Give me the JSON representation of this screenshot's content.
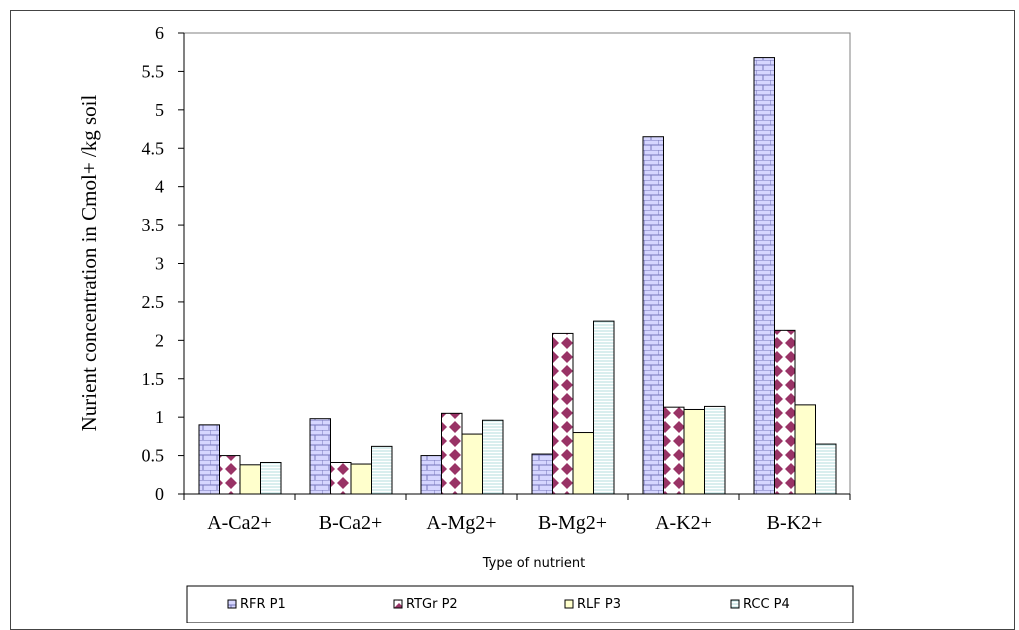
{
  "chart_data": {
    "type": "bar",
    "title": "",
    "xlabel": "Type of nutrient",
    "ylabel": "Nurient concentration in Cmol+ /kg soil",
    "ylim": [
      0,
      6
    ],
    "yticks": [
      "0",
      "0.5",
      "1",
      "1.5",
      "2",
      "2.5",
      "3",
      "3.5",
      "4",
      "4.5",
      "5",
      "5.5",
      "6"
    ],
    "categories": [
      "A-Ca2+",
      "B-Ca2+",
      "A-Mg2+",
      "B-Mg2+",
      "A-K2+",
      "B-K2+"
    ],
    "series": [
      {
        "name": "RFR P1",
        "color": "#ccccff",
        "pattern": "brick",
        "values": [
          0.9,
          0.98,
          0.5,
          0.52,
          4.65,
          5.68
        ]
      },
      {
        "name": "RTGr P2",
        "color": "#993366",
        "pattern": "diamond",
        "values": [
          0.5,
          0.41,
          1.05,
          2.09,
          1.13,
          2.13
        ]
      },
      {
        "name": "RLF P3",
        "color": "#ffffcc",
        "pattern": "solid",
        "values": [
          0.38,
          0.39,
          0.78,
          0.8,
          1.1,
          1.16
        ]
      },
      {
        "name": "RCC P4",
        "color": "#ccffff",
        "pattern": "hlines",
        "values": [
          0.41,
          0.62,
          0.96,
          2.25,
          1.14,
          0.65
        ]
      }
    ],
    "grid": false,
    "legend_position": "bottom"
  }
}
